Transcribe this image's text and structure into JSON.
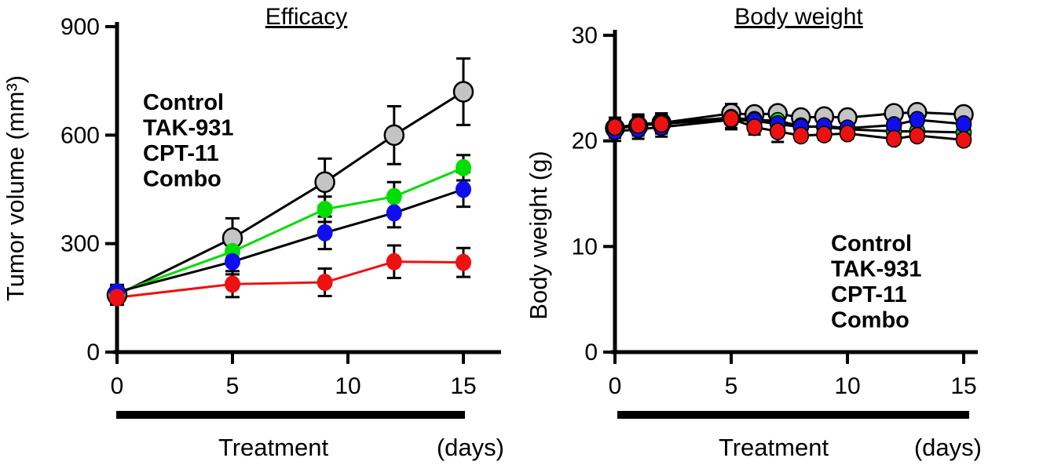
{
  "figure": {
    "left_title": "Efficacy",
    "right_title": "Body weight"
  },
  "chart_data": [
    {
      "type": "line",
      "title": "Efficacy",
      "ylabel": "Tumor volume (mm³)",
      "xlabel": "Treatment",
      "xunit": "(days)",
      "ylim": [
        0,
        900
      ],
      "yticks": [
        0,
        300,
        600,
        900
      ],
      "xticks": [
        0,
        5,
        10,
        15
      ],
      "grid": false,
      "x_days": [
        0,
        5,
        9,
        12,
        15
      ],
      "series": [
        {
          "name": "Control",
          "marker": "#c4c4c4",
          "marker_outline": "#000000",
          "line": "#000000",
          "values": [
            158,
            315,
            470,
            600,
            720
          ],
          "errors": [
            25,
            55,
            65,
            80,
            92
          ]
        },
        {
          "name": "CPT-11",
          "marker": "#00dd00",
          "marker_outline": "none",
          "line": "#00dd00",
          "values": [
            163,
            278,
            395,
            430,
            510
          ],
          "errors": [
            20,
            32,
            35,
            40,
            35
          ]
        },
        {
          "name": "TAK-931",
          "marker": "#0f0fee",
          "marker_outline": "none",
          "line": "#000000",
          "values": [
            166,
            250,
            330,
            385,
            450
          ],
          "errors": [
            20,
            35,
            45,
            40,
            48
          ]
        },
        {
          "name": "Combo",
          "marker": "#ee1111",
          "marker_outline": "none",
          "line": "#ee1111",
          "values": [
            151,
            188,
            193,
            250,
            248
          ],
          "errors": [
            20,
            36,
            38,
            45,
            40
          ]
        }
      ],
      "legend": {
        "position": "upper-left",
        "entries": [
          {
            "label": "Control",
            "color": "#000000"
          },
          {
            "label": "TAK-931",
            "color": "#1414ff"
          },
          {
            "label": "CPT-11",
            "color": "#00a550"
          },
          {
            "label": "Combo",
            "color": "#ee1111"
          }
        ]
      }
    },
    {
      "type": "line",
      "title": "Body weight",
      "ylabel": "Body weight  (g)",
      "xlabel": "Treatment",
      "xunit": "(days)",
      "ylim": [
        0,
        30
      ],
      "yticks": [
        0,
        10,
        20,
        30
      ],
      "xticks": [
        0,
        5,
        10,
        15
      ],
      "grid": false,
      "x_days": [
        0,
        1,
        2,
        5,
        6,
        7,
        8,
        9,
        10,
        12,
        13,
        15
      ],
      "series": [
        {
          "name": "Control",
          "marker": "#c4c4c4",
          "marker_outline": "#000000",
          "line": "#000000",
          "values": [
            21.2,
            21.4,
            21.7,
            22.6,
            22.5,
            22.6,
            22.2,
            22.3,
            22.2,
            22.6,
            22.7,
            22.5
          ],
          "errors": [
            0.9,
            0.9,
            0.9,
            0.9,
            0.5,
            0.5,
            0.5,
            0.5,
            0.5,
            0.5,
            0.5,
            0.5
          ]
        },
        {
          "name": "CPT-11",
          "marker": "#00dd00",
          "marker_outline": "#000000",
          "line": "#000000",
          "values": [
            21.2,
            21.6,
            21.7,
            22.2,
            22.0,
            21.9,
            21.4,
            21.3,
            21.1,
            20.9,
            20.9,
            20.8
          ],
          "errors": [
            0.5,
            0.9,
            0.9,
            0.5,
            0.5,
            0.5,
            0.5,
            0.5,
            0.5,
            0.5,
            0.5,
            0.5
          ]
        },
        {
          "name": "TAK-931",
          "marker": "#0f0fee",
          "marker_outline": "#000000",
          "line": "#000000",
          "values": [
            20.9,
            21.1,
            21.3,
            22.0,
            21.9,
            21.6,
            21.3,
            21.4,
            21.2,
            21.5,
            22.0,
            21.6
          ],
          "errors": [
            0.9,
            0.9,
            0.9,
            0.9,
            0.5,
            0.5,
            0.5,
            0.5,
            0.5,
            0.5,
            0.5,
            0.5
          ]
        },
        {
          "name": "Combo",
          "marker": "#ee1111",
          "marker_outline": "#000000",
          "line": "#000000",
          "values": [
            21.3,
            21.5,
            21.6,
            22.1,
            21.3,
            20.9,
            20.5,
            20.6,
            20.7,
            20.2,
            20.5,
            20.1
          ],
          "errors": [
            0.9,
            0.9,
            0.9,
            0.9,
            0.7,
            1.0,
            0.5,
            0.5,
            0.5,
            0.5,
            0.5,
            0.5
          ]
        }
      ],
      "legend": {
        "position": "lower-right",
        "entries": [
          {
            "label": "Control",
            "color": "#000000"
          },
          {
            "label": "TAK-931",
            "color": "#1414ff"
          },
          {
            "label": "CPT-11",
            "color": "#00a550"
          },
          {
            "label": "Combo",
            "color": "#ee1111"
          }
        ]
      }
    }
  ]
}
